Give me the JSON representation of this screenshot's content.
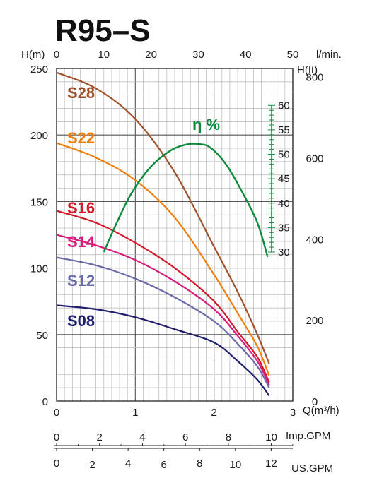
{
  "chart_data": {
    "type": "line",
    "title": "R95–S",
    "x_units": {
      "primary": "Q(m³/h)",
      "top": "l/min.",
      "imp": "Imp.GPM",
      "us": "US.GPM"
    },
    "y_units": {
      "left": "H(m)",
      "right": "H(ft)"
    },
    "xlim": [
      0,
      3
    ],
    "ylim_m": [
      0,
      250
    ],
    "x_ticks": [
      "0",
      "1",
      "2",
      "3"
    ],
    "y_ticks_m": [
      "0",
      "50",
      "100",
      "150",
      "200",
      "250"
    ],
    "top_ticks": [
      "0",
      "10",
      "20",
      "30",
      "40",
      "50"
    ],
    "y_ticks_ft": [
      "0",
      "200",
      "400",
      "600",
      "800"
    ],
    "eff_ticks": [
      "30",
      "35",
      "40",
      "45",
      "50",
      "55",
      "60"
    ],
    "imp_ticks": [
      "0",
      "2",
      "4",
      "6",
      "8",
      "10"
    ],
    "us_ticks": [
      "0",
      "2",
      "4",
      "6",
      "8",
      "10",
      "12"
    ],
    "series": [
      {
        "name": "S28",
        "color": "#a0522d",
        "x": [
          0,
          0.5,
          1.0,
          1.5,
          2.0,
          2.3,
          2.55,
          2.7
        ],
        "y": [
          247,
          235,
          212,
          172,
          116,
          82,
          50,
          28
        ]
      },
      {
        "name": "S22",
        "color": "#f07f0a",
        "x": [
          0,
          0.5,
          1.0,
          1.5,
          2.0,
          2.3,
          2.55,
          2.7
        ],
        "y": [
          194,
          183,
          166,
          138,
          95,
          66,
          41,
          19
        ]
      },
      {
        "name": "S16",
        "color": "#d6182a",
        "x": [
          0,
          0.5,
          1.0,
          1.5,
          2.0,
          2.3,
          2.55,
          2.7
        ],
        "y": [
          143,
          134,
          119,
          100,
          75,
          52,
          33,
          14
        ]
      },
      {
        "name": "S14",
        "color": "#d91c7c",
        "x": [
          0,
          0.5,
          1.0,
          1.5,
          2.0,
          2.3,
          2.55,
          2.7
        ],
        "y": [
          125,
          117,
          106,
          90,
          69,
          49,
          30,
          12
        ]
      },
      {
        "name": "S12",
        "color": "#6a6aa8",
        "x": [
          0,
          0.5,
          1.0,
          1.5,
          2.0,
          2.3,
          2.55,
          2.7
        ],
        "y": [
          108,
          102,
          92,
          78,
          60,
          43,
          26,
          10
        ]
      },
      {
        "name": "S08",
        "color": "#1f1f6e",
        "x": [
          0,
          0.5,
          1.0,
          1.5,
          2.0,
          2.3,
          2.55,
          2.7
        ],
        "y": [
          72,
          69,
          63,
          54,
          44,
          30,
          16,
          4
        ]
      }
    ],
    "efficiency": {
      "label": "η %",
      "color": "#0a8a3a",
      "x": [
        0.6,
        0.75,
        0.95,
        1.2,
        1.45,
        1.65,
        1.8,
        1.95,
        2.15,
        2.35,
        2.55,
        2.68
      ],
      "y": [
        30.0,
        35.5,
        42.0,
        47.5,
        50.8,
        52.0,
        52.1,
        51.4,
        48.0,
        42.5,
        36.0,
        29.0
      ]
    }
  }
}
